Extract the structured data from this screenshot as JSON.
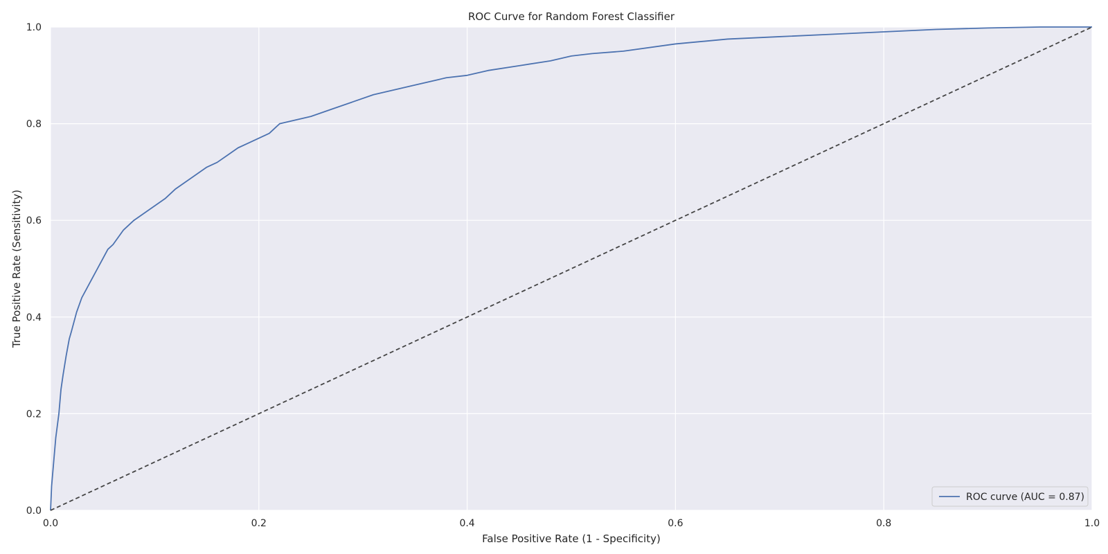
{
  "chart_data": {
    "type": "line",
    "title": "ROC Curve for Random Forest Classifier",
    "xlabel": "False Positive Rate (1 - Specificity)",
    "ylabel": "True Positive Rate (Sensitivity)",
    "xlim": [
      0.0,
      1.0
    ],
    "ylim": [
      0.0,
      1.0
    ],
    "xticks": [
      "0.0",
      "0.2",
      "0.4",
      "0.6",
      "0.8",
      "1.0"
    ],
    "yticks": [
      "0.0",
      "0.2",
      "0.4",
      "0.6",
      "0.8",
      "1.0"
    ],
    "grid": true,
    "background_color": "#eaeaf2",
    "legend_position": "lower right",
    "series": [
      {
        "name": "ROC curve (AUC = 0.87)",
        "color": "#4c72b0",
        "style": "solid",
        "x": [
          0.0,
          0.001,
          0.003,
          0.005,
          0.008,
          0.01,
          0.012,
          0.015,
          0.018,
          0.02,
          0.025,
          0.03,
          0.035,
          0.04,
          0.045,
          0.05,
          0.055,
          0.06,
          0.065,
          0.07,
          0.08,
          0.09,
          0.1,
          0.11,
          0.12,
          0.13,
          0.14,
          0.15,
          0.16,
          0.17,
          0.18,
          0.19,
          0.2,
          0.21,
          0.215,
          0.22,
          0.23,
          0.25,
          0.27,
          0.29,
          0.31,
          0.33,
          0.35,
          0.38,
          0.4,
          0.42,
          0.45,
          0.48,
          0.5,
          0.52,
          0.55,
          0.6,
          0.65,
          0.7,
          0.75,
          0.8,
          0.85,
          0.9,
          0.95,
          1.0
        ],
        "y": [
          0.0,
          0.05,
          0.1,
          0.15,
          0.2,
          0.25,
          0.28,
          0.32,
          0.355,
          0.37,
          0.41,
          0.44,
          0.46,
          0.48,
          0.5,
          0.52,
          0.54,
          0.55,
          0.565,
          0.58,
          0.6,
          0.615,
          0.63,
          0.645,
          0.665,
          0.68,
          0.695,
          0.71,
          0.72,
          0.735,
          0.75,
          0.76,
          0.77,
          0.78,
          0.79,
          0.8,
          0.805,
          0.815,
          0.83,
          0.845,
          0.86,
          0.87,
          0.88,
          0.895,
          0.9,
          0.91,
          0.92,
          0.93,
          0.94,
          0.945,
          0.95,
          0.965,
          0.975,
          0.98,
          0.985,
          0.99,
          0.995,
          0.998,
          1.0,
          1.0
        ]
      },
      {
        "color": "#444444",
        "style": "dashed",
        "x": [
          0.0,
          1.0
        ],
        "y": [
          0.0,
          1.0
        ]
      }
    ]
  }
}
